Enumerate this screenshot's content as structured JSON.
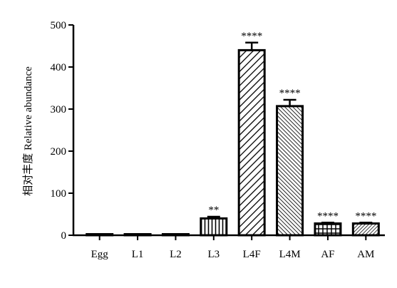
{
  "chart_data": {
    "type": "bar",
    "categories": [
      "Egg",
      "L1",
      "L2",
      "L3",
      "L4F",
      "L4M",
      "AF",
      "AM"
    ],
    "values": [
      1,
      1,
      2,
      40,
      440,
      307,
      28,
      28
    ],
    "errors": [
      0.5,
      0.5,
      1,
      4,
      18,
      15,
      2,
      2
    ],
    "significance": [
      "",
      "",
      "",
      "**",
      "****",
      "****",
      "****",
      "****"
    ],
    "patterns": [
      "solid",
      "solid",
      "solid",
      "vertical",
      "diagonal-wide",
      "diagonal-dense",
      "grid",
      "diagonal-fine"
    ],
    "ylabel": "相对丰度 Relative abundance",
    "xlabel": "",
    "title": "",
    "ylim": [
      0,
      500
    ],
    "yticks": [
      0,
      100,
      200,
      300,
      400,
      500
    ],
    "grid": false,
    "bar_color": "#000000"
  }
}
